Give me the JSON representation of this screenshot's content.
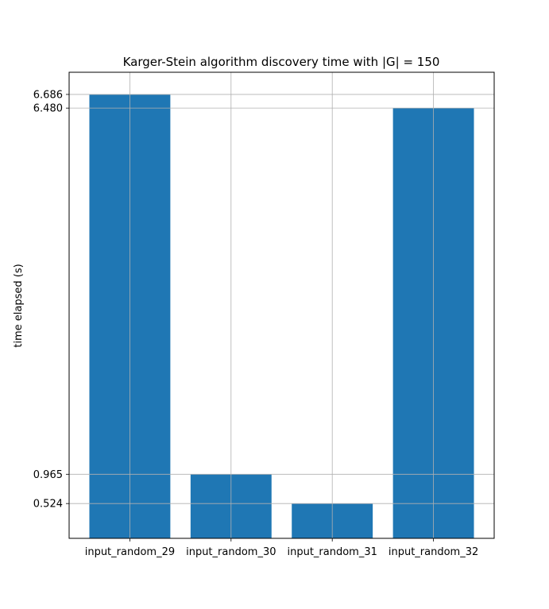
{
  "chart_data": {
    "type": "bar",
    "title": "Karger-Stein algorithm discovery time with |G| = 150",
    "xlabel": "",
    "ylabel": "time elapsed (s)",
    "categories": [
      "input_random_29",
      "input_random_30",
      "input_random_31",
      "input_random_32"
    ],
    "values": [
      6.686,
      0.965,
      0.524,
      6.48
    ],
    "yticks": [
      "0.524",
      "0.965",
      "6.480",
      "6.686"
    ],
    "ylim": [
      0,
      7.02
    ],
    "grid": true,
    "bar_color": "#1f77b4",
    "grid_color": "#b0b0b0"
  }
}
